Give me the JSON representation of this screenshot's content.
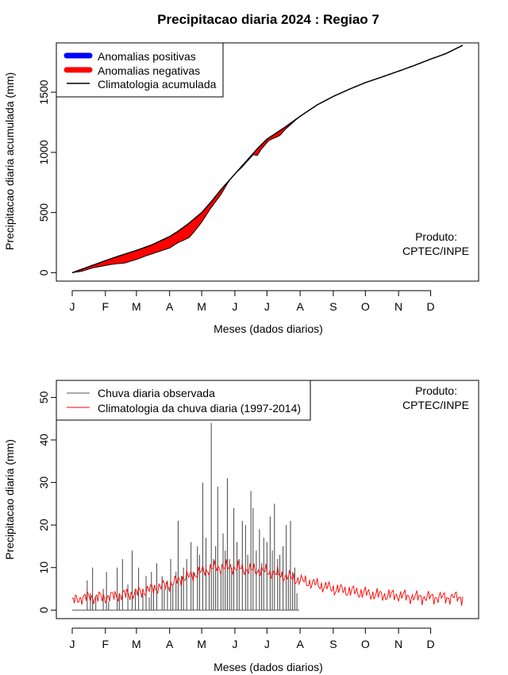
{
  "page": {
    "title": "Precipitacao diaria 2024 : Regiao 7",
    "product_label": "Produto:",
    "product_name": "CPTEC/INPE"
  },
  "colors": {
    "positive": "#0000ff",
    "negative": "#ff0000",
    "climatology": "#000000",
    "observed": "#555555",
    "daily_climatology": "#ff0000"
  },
  "chart_data": [
    {
      "type": "area",
      "name": "accumulated",
      "title": "Precipitacao diaria 2024 : Regiao 7",
      "xlabel": "Meses (dados diarios)",
      "ylabel": "Precipitacao diaria acumulada (mm)",
      "xlim": [
        1,
        366
      ],
      "ylim": [
        -70,
        1910
      ],
      "xticks": [
        1,
        32,
        61,
        92,
        122,
        153,
        183,
        214,
        245,
        275,
        306,
        336
      ],
      "xtick_labels": [
        "J",
        "F",
        "M",
        "A",
        "M",
        "J",
        "J",
        "A",
        "S",
        "O",
        "N",
        "D"
      ],
      "yticks": [
        0,
        500,
        1000,
        1500
      ],
      "ytick_labels": [
        "0",
        "500",
        "1000",
        "1500"
      ],
      "legend": [
        "Anomalias positivas",
        "Anomalias negativas",
        "Climatologia acumulada"
      ],
      "legend_position": "top-left",
      "climatology_cumulative": {
        "day": [
          1,
          15,
          32,
          45,
          61,
          75,
          92,
          100,
          110,
          122,
          130,
          140,
          153,
          165,
          175,
          183,
          200,
          214,
          230,
          245,
          260,
          275,
          290,
          306,
          320,
          336,
          350,
          366
        ],
        "value": [
          0,
          45,
          100,
          140,
          185,
          230,
          300,
          345,
          410,
          500,
          580,
          690,
          820,
          940,
          1040,
          1110,
          1210,
          1300,
          1395,
          1465,
          1525,
          1580,
          1625,
          1675,
          1720,
          1775,
          1820,
          1890
        ]
      },
      "observed_cumulative": {
        "day": [
          1,
          10,
          20,
          32,
          40,
          50,
          61,
          70,
          80,
          92,
          100,
          110,
          115,
          122,
          130,
          140,
          148,
          153,
          160,
          170,
          174,
          178,
          185,
          190,
          195,
          200,
          205,
          210,
          214
        ],
        "value": [
          0,
          12,
          40,
          60,
          72,
          80,
          110,
          140,
          170,
          205,
          250,
          290,
          340,
          420,
          530,
          650,
          770,
          820,
          880,
          980,
          975,
          1030,
          1100,
          1120,
          1140,
          1190,
          1230,
          1270,
          1300
        ]
      },
      "anomaly_status": "negative"
    },
    {
      "type": "bar",
      "name": "daily",
      "xlabel": "Meses (dados diarios)",
      "ylabel": "Precipitacao diaria (mm)",
      "xlim": [
        1,
        366
      ],
      "ylim": [
        -2,
        54
      ],
      "xticks": [
        1,
        32,
        61,
        92,
        122,
        153,
        183,
        214,
        245,
        275,
        306,
        336
      ],
      "xtick_labels": [
        "J",
        "F",
        "M",
        "A",
        "M",
        "J",
        "J",
        "A",
        "S",
        "O",
        "N",
        "D"
      ],
      "yticks": [
        0,
        10,
        20,
        30,
        40,
        50
      ],
      "ytick_labels": [
        "0",
        "10",
        "20",
        "30",
        "40",
        "50"
      ],
      "legend": [
        "Chuva diaria observada",
        "Climatologia da chuva diaria (1997-2014)"
      ],
      "legend_position": "top-left",
      "observed_last_day": 213,
      "observed_peaks": {
        "day": [
          15,
          18,
          20,
          23,
          30,
          33,
          35,
          43,
          45,
          48,
          53,
          57,
          60,
          63,
          67,
          70,
          73,
          75,
          77,
          80,
          85,
          87,
          90,
          93,
          95,
          98,
          100,
          103,
          105,
          108,
          112,
          114,
          118,
          120,
          123,
          126,
          129,
          131,
          133,
          135,
          137,
          140,
          142,
          144,
          146,
          148,
          150,
          152,
          155,
          157,
          160,
          163,
          165,
          168,
          170,
          173,
          176,
          178,
          180,
          183,
          186,
          188,
          190,
          193,
          195,
          198,
          201,
          203,
          205,
          207,
          209,
          211
        ],
        "value": [
          7,
          4,
          10,
          3,
          5,
          9,
          2,
          10,
          4,
          12,
          6,
          14,
          5,
          10,
          4,
          8,
          3,
          9,
          5,
          11,
          8,
          5,
          7,
          12,
          6,
          9,
          21,
          8,
          10,
          12,
          16,
          9,
          15,
          13,
          30,
          17,
          9,
          44,
          12,
          15,
          29,
          9,
          18,
          14,
          31,
          12,
          10,
          24,
          16,
          12,
          21,
          20,
          13,
          28,
          24,
          14,
          19,
          11,
          17,
          16,
          22,
          14,
          25,
          12,
          13,
          15,
          20,
          8,
          21,
          9,
          10,
          4
        ]
      },
      "climatology_daily": {
        "day": [
          1,
          10,
          20,
          32,
          45,
          61,
          75,
          92,
          105,
          122,
          135,
          150,
          165,
          183,
          200,
          214,
          230,
          245,
          260,
          275,
          290,
          306,
          320,
          336,
          350,
          366
        ],
        "value": [
          2,
          3,
          3,
          3,
          3.5,
          4,
          5,
          6,
          7.5,
          9,
          10,
          10,
          9.5,
          9,
          8,
          7,
          6,
          5,
          4.5,
          4,
          3.5,
          3.5,
          3,
          3,
          3,
          3
        ]
      }
    }
  ]
}
